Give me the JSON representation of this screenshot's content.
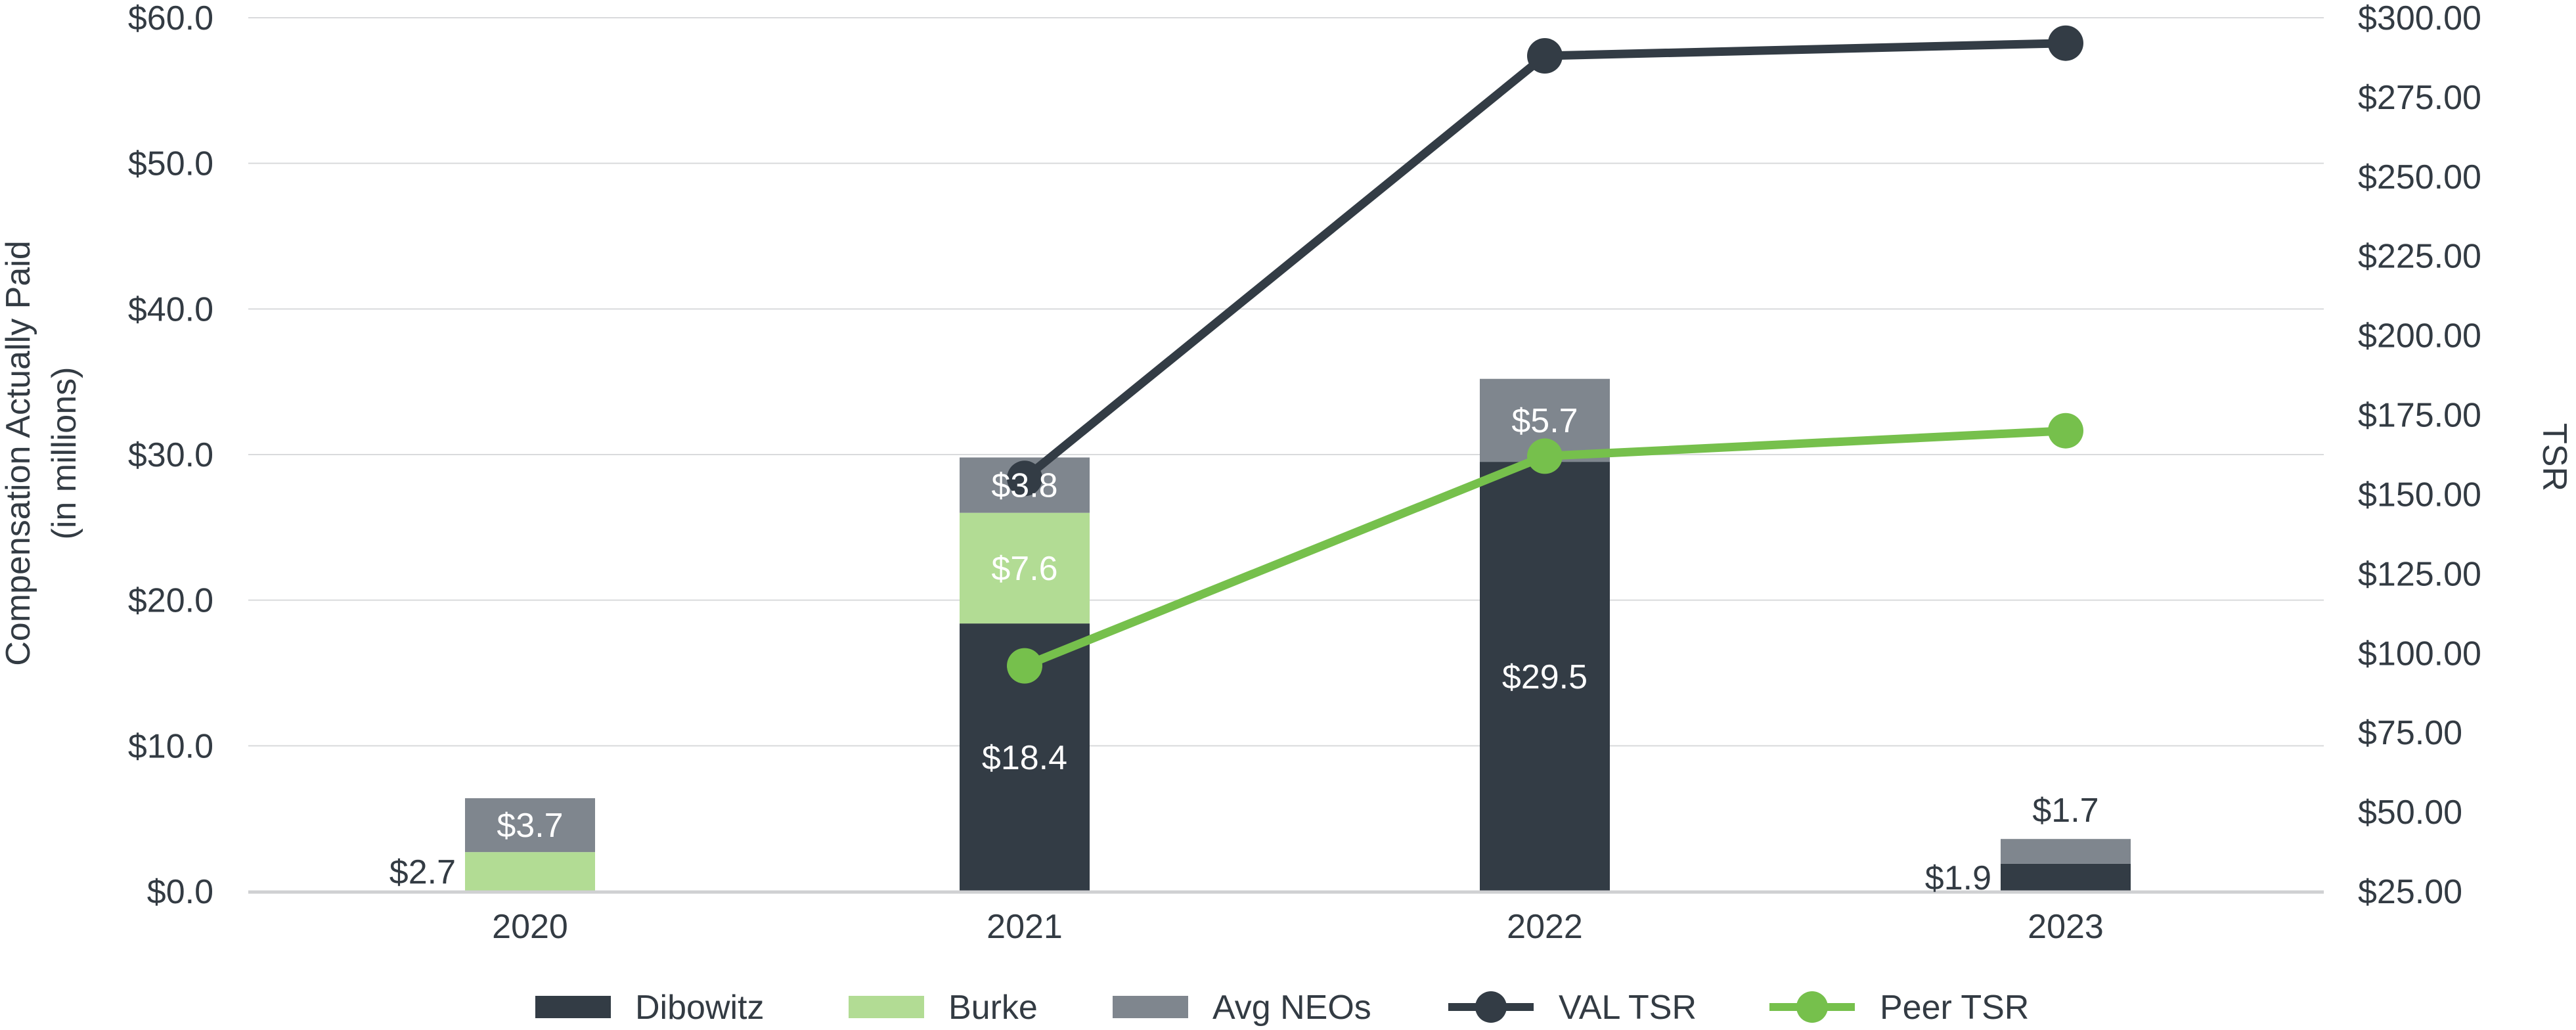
{
  "chart_data": {
    "type": "bar",
    "subtype": "stacked-bar-with-lines",
    "title": "",
    "categories": [
      "2020",
      "2021",
      "2022",
      "2023"
    ],
    "y_left": {
      "label_line1": "Compensation Actually Paid",
      "label_line2": "(in millions)",
      "min": 0,
      "max": 60,
      "ticks": [
        "$0.0",
        "$10.0",
        "$20.0",
        "$30.0",
        "$40.0",
        "$50.0",
        "$60.0"
      ],
      "grid": true
    },
    "y_right": {
      "label": "TSR",
      "min": 25,
      "max": 300,
      "ticks": [
        "$25.00",
        "$50.00",
        "$75.00",
        "$100.00",
        "$125.00",
        "$150.00",
        "$175.00",
        "$200.00",
        "$225.00",
        "$250.00",
        "$275.00",
        "$300.00"
      ]
    },
    "series": [
      {
        "name": "Dibowitz",
        "kind": "bar",
        "axis": "left",
        "color": "#333c45",
        "values": [
          null,
          18.4,
          29.5,
          1.9
        ],
        "labels": [
          null,
          "$18.4",
          "$29.5",
          "$1.9"
        ]
      },
      {
        "name": "Burke",
        "kind": "bar",
        "axis": "left",
        "color": "#b2dc94",
        "values": [
          2.7,
          7.6,
          null,
          null
        ],
        "labels": [
          "$2.7",
          "$7.6",
          null,
          null
        ]
      },
      {
        "name": "Avg NEOs",
        "kind": "bar",
        "axis": "left",
        "color": "#7f868e",
        "values": [
          3.7,
          3.8,
          5.7,
          1.7
        ],
        "labels": [
          "$3.7",
          "$3.8",
          "$5.7",
          "$1.7"
        ]
      },
      {
        "name": "VAL TSR",
        "kind": "line",
        "axis": "right",
        "color": "#333c45",
        "values": [
          null,
          155,
          288,
          292
        ]
      },
      {
        "name": "Peer TSR",
        "kind": "line",
        "axis": "right",
        "color": "#76c04c",
        "values": [
          null,
          96,
          162,
          170
        ]
      }
    ],
    "legend": {
      "position": "bottom",
      "items": [
        "Dibowitz",
        "Burke",
        "Avg NEOs",
        "VAL TSR",
        "Peer TSR"
      ]
    }
  }
}
